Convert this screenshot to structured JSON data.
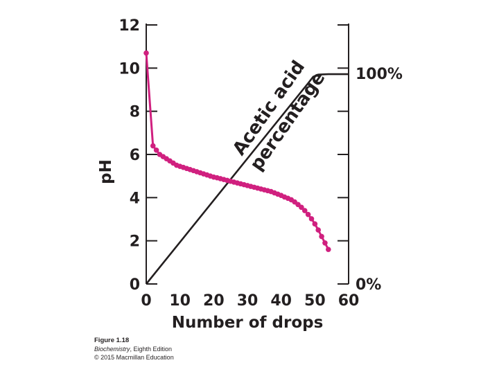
{
  "chart_data": {
    "type": "scatter",
    "xlabel": "Number of drops",
    "ylabel": "pH",
    "xlim": [
      0,
      60
    ],
    "ylim": [
      0,
      12
    ],
    "x_ticks": [
      "0",
      "10",
      "20",
      "30",
      "40",
      "50",
      "60"
    ],
    "y_ticks": [
      "0",
      "2",
      "4",
      "6",
      "8",
      "10",
      "12"
    ],
    "right_axis": {
      "labels": [
        "0%",
        "100%"
      ]
    },
    "diagonal_label_lines": [
      "Acetic acid",
      "percentage"
    ],
    "colors": {
      "ph_series": "#d0207f",
      "percentage_line": "#231f20",
      "axes": "#231f20"
    },
    "series": [
      {
        "marker": "dot",
        "x": [
          0,
          2,
          3,
          4,
          5,
          6,
          7,
          8,
          9,
          10,
          11,
          12,
          13,
          14,
          15,
          16,
          17,
          18,
          19,
          20,
          21,
          22,
          23,
          24,
          25,
          26,
          27,
          28,
          29,
          30,
          31,
          32,
          33,
          34,
          35,
          36,
          37,
          38,
          39,
          40,
          41,
          42,
          43,
          44,
          45,
          46,
          47,
          48,
          49,
          50,
          51,
          52,
          53,
          54
        ],
        "y": [
          10.7,
          6.4,
          6.2,
          6.0,
          5.9,
          5.8,
          5.7,
          5.6,
          5.5,
          5.45,
          5.4,
          5.35,
          5.3,
          5.25,
          5.2,
          5.15,
          5.1,
          5.05,
          5.0,
          4.95,
          4.92,
          4.88,
          4.84,
          4.8,
          4.76,
          4.72,
          4.68,
          4.64,
          4.6,
          4.56,
          4.52,
          4.48,
          4.44,
          4.4,
          4.36,
          4.32,
          4.28,
          4.22,
          4.16,
          4.1,
          4.03,
          3.97,
          3.9,
          3.8,
          3.68,
          3.55,
          3.4,
          3.22,
          3.02,
          2.78,
          2.5,
          2.2,
          1.9,
          1.6
        ]
      },
      {
        "marker": "line",
        "x": [
          0,
          48,
          49.5,
          51,
          54,
          60
        ],
        "y": [
          0,
          9.3,
          9.6,
          9.7,
          9.72,
          9.72
        ]
      }
    ]
  },
  "caption": {
    "figure": "Figure 1.18",
    "book_title": "Biochemistry",
    "edition": ", Eighth Edition",
    "copyright": "© 2015 Macmillan Education"
  }
}
